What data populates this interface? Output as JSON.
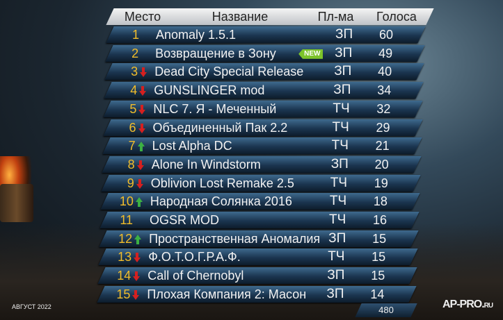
{
  "header": {
    "rank": "Место",
    "name": "Название",
    "platform": "Пл-ма",
    "votes": "Голоса"
  },
  "rows": [
    {
      "rank": "1",
      "name": "Anomaly 1.5.1",
      "platform": "ЗП",
      "votes": "60",
      "trend": "none"
    },
    {
      "rank": "2",
      "name": "Возвращение в Зону",
      "platform": "ЗП",
      "votes": "49",
      "trend": "new",
      "badge": "NEW"
    },
    {
      "rank": "3",
      "name": "Dead City Special Release",
      "platform": "ЗП",
      "votes": "40",
      "trend": "down"
    },
    {
      "rank": "4",
      "name": "GUNSLINGER mod",
      "platform": "ЗП",
      "votes": "34",
      "trend": "down"
    },
    {
      "rank": "5",
      "name": "NLC 7. Я - Меченный",
      "platform": "ТЧ",
      "votes": "32",
      "trend": "down"
    },
    {
      "rank": "6",
      "name": "Объединенный Пак 2.2",
      "platform": "ТЧ",
      "votes": "29",
      "trend": "down"
    },
    {
      "rank": "7",
      "name": "Lost Alpha DC",
      "platform": "ТЧ",
      "votes": "21",
      "trend": "up"
    },
    {
      "rank": "8",
      "name": "Alone In Windstorm",
      "platform": "ЗП",
      "votes": "20",
      "trend": "down"
    },
    {
      "rank": "9",
      "name": "Oblivion Lost Remake 2.5",
      "platform": "ТЧ",
      "votes": "19",
      "trend": "down"
    },
    {
      "rank": "10",
      "name": "Народная Солянка 2016",
      "platform": "ТЧ",
      "votes": "18",
      "trend": "up"
    },
    {
      "rank": "11",
      "name": "OGSR MOD",
      "platform": "ТЧ",
      "votes": "16",
      "trend": "none"
    },
    {
      "rank": "12",
      "name": "Пространственная Аномалия",
      "platform": "ЗП",
      "votes": "15",
      "trend": "up"
    },
    {
      "rank": "13",
      "name": "Ф.О.Т.О.Г.Р.А.Ф.",
      "platform": "ТЧ",
      "votes": "15",
      "trend": "down"
    },
    {
      "rank": "14",
      "name": "Call of Chernobyl",
      "platform": "ЗП",
      "votes": "15",
      "trend": "down"
    },
    {
      "rank": "15",
      "name": "Плохая Компания 2: Масон",
      "platform": "ЗП",
      "votes": "14",
      "trend": "down"
    }
  ],
  "total": "480",
  "date": "АВГУСТ 2022",
  "logo": "AP-PRO.RU",
  "colors": {
    "rank": "#f2bd2a",
    "up": "#3cb043",
    "down": "#d42020",
    "new": "#7cc32a"
  }
}
